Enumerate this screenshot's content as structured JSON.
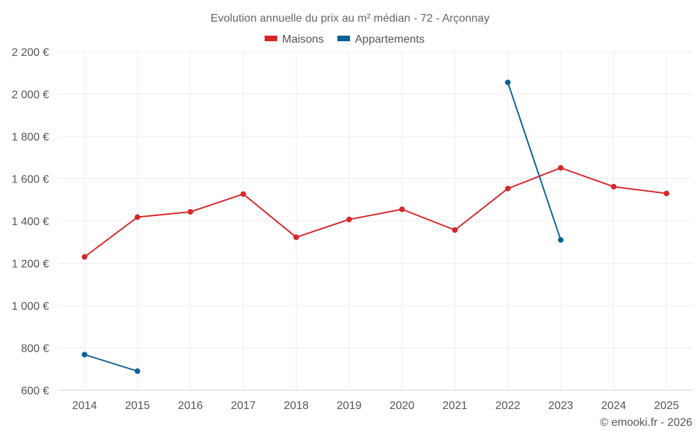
{
  "chart_data": {
    "type": "line",
    "title": "Evolution annuelle du prix au m² médian - 72 - Arçonnay",
    "categories": [
      "2014",
      "2015",
      "2016",
      "2017",
      "2018",
      "2019",
      "2020",
      "2021",
      "2022",
      "2023",
      "2024",
      "2025"
    ],
    "y_ticks": [
      600,
      800,
      1000,
      1200,
      1400,
      1600,
      1800,
      2000,
      2200
    ],
    "y_tick_labels": [
      "600 €",
      "800 €",
      "1 000 €",
      "1 200 €",
      "1 400 €",
      "1 600 €",
      "1 800 €",
      "2 000 €",
      "2 200 €"
    ],
    "ylim": [
      600,
      2200
    ],
    "grid": true,
    "legend_position": "top-center",
    "series": [
      {
        "name": "Maisons",
        "color": "#d62728",
        "values": [
          1230,
          1418,
          1443,
          1527,
          1323,
          1407,
          1455,
          1357,
          1553,
          1651,
          1562,
          1530
        ]
      },
      {
        "name": "Appartements",
        "color": "#0b6196",
        "values": [
          768,
          690,
          null,
          null,
          null,
          null,
          null,
          null,
          2055,
          1310,
          null,
          null
        ]
      }
    ],
    "credit": "© emooki.fr - 2026"
  }
}
